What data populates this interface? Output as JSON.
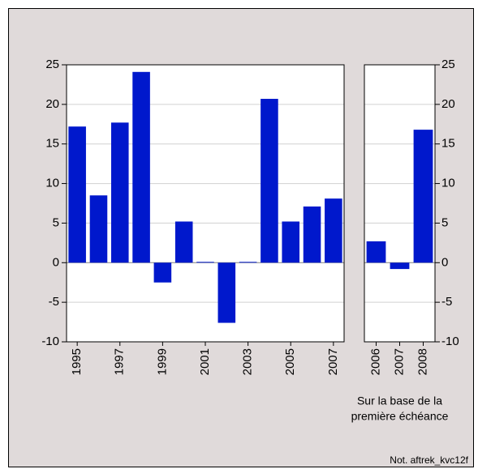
{
  "chart_data": [
    {
      "type": "bar",
      "categories": [
        "1995",
        null,
        "1997",
        null,
        "1999",
        null,
        "2001",
        null,
        "2003",
        null,
        "2005",
        null,
        "2007"
      ],
      "values": [
        17.2,
        8.5,
        17.7,
        24.1,
        -2.5,
        5.2,
        0.1,
        -7.6,
        0.1,
        20.7,
        5.2,
        7.1,
        8.1
      ],
      "color": "#0018cc",
      "ylim": [
        -10,
        25
      ],
      "yticks": [
        -10,
        -5,
        0,
        5,
        10,
        15,
        20,
        25
      ],
      "grid": true,
      "yaxis_side": "left"
    },
    {
      "type": "bar",
      "categories": [
        "2006",
        "2007",
        "2008"
      ],
      "values": [
        2.7,
        -0.8,
        16.8
      ],
      "color": "#0018cc",
      "ylim": [
        -10,
        25
      ],
      "yticks": [
        -10,
        -5,
        0,
        5,
        10,
        15,
        20,
        25
      ],
      "grid": true,
      "yaxis_side": "right",
      "annotation": [
        "Sur la base de la",
        "première échéance"
      ]
    }
  ],
  "footer": "Not. aftrek_kvc12f"
}
